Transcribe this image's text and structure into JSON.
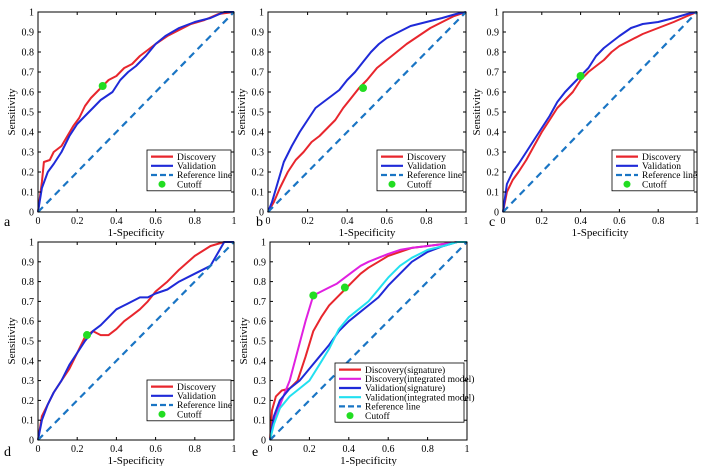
{
  "chart_data": [
    {
      "type": "line",
      "panel_label": "a",
      "xlabel": "1-Specificity",
      "ylabel": "Sensitivity",
      "xlim": [
        0,
        1
      ],
      "ylim": [
        0,
        1
      ],
      "xticks": [
        "0",
        "0.2",
        "0.4",
        "0.6",
        "0.8",
        "1"
      ],
      "yticks": [
        "0",
        "0.1",
        "0.2",
        "0.3",
        "0.4",
        "0.5",
        "0.6",
        "0.7",
        "0.8",
        "0.9",
        "1"
      ],
      "legend_position": "bottom-right",
      "series": [
        {
          "name": "Discovery",
          "color": "#e8262d",
          "style": "solid",
          "x": [
            0,
            0.02,
            0.03,
            0.06,
            0.08,
            0.12,
            0.15,
            0.18,
            0.21,
            0.24,
            0.27,
            0.3,
            0.33,
            0.36,
            0.4,
            0.44,
            0.48,
            0.52,
            0.56,
            0.6,
            0.66,
            0.72,
            0.78,
            0.85,
            0.92,
            1
          ],
          "y": [
            0,
            0.15,
            0.25,
            0.26,
            0.3,
            0.33,
            0.38,
            0.43,
            0.47,
            0.53,
            0.57,
            0.6,
            0.63,
            0.66,
            0.68,
            0.72,
            0.74,
            0.78,
            0.81,
            0.84,
            0.88,
            0.91,
            0.94,
            0.96,
            0.99,
            1
          ]
        },
        {
          "name": "Validation",
          "color": "#1f2ad8",
          "style": "solid",
          "x": [
            0,
            0.02,
            0.05,
            0.08,
            0.12,
            0.16,
            0.2,
            0.24,
            0.28,
            0.32,
            0.35,
            0.38,
            0.42,
            0.46,
            0.5,
            0.55,
            0.6,
            0.65,
            0.72,
            0.8,
            0.88,
            0.95,
            1
          ],
          "y": [
            0,
            0.12,
            0.2,
            0.24,
            0.3,
            0.38,
            0.44,
            0.48,
            0.52,
            0.56,
            0.58,
            0.6,
            0.66,
            0.7,
            0.73,
            0.78,
            0.84,
            0.88,
            0.92,
            0.95,
            0.97,
            1,
            1
          ]
        },
        {
          "name": "Reference line",
          "color": "#1a75c4",
          "style": "dashed",
          "x": [
            0,
            1
          ],
          "y": [
            0,
            1
          ]
        }
      ],
      "cutoff": {
        "name": "Cutoff",
        "color": "#22dd22",
        "x": 0.33,
        "y": 0.63
      }
    },
    {
      "type": "line",
      "panel_label": "b",
      "xlabel": "1-Specificity",
      "ylabel": "Sensitivity",
      "xlim": [
        0,
        1
      ],
      "ylim": [
        0,
        1
      ],
      "xticks": [
        "0",
        "0.2",
        "0.4",
        "0.6",
        "0.8",
        "1"
      ],
      "yticks": [
        "0",
        "0.1",
        "0.2",
        "0.3",
        "0.4",
        "0.5",
        "0.6",
        "0.7",
        "0.8",
        "0.9",
        "1"
      ],
      "legend_position": "bottom-right",
      "series": [
        {
          "name": "Discovery",
          "color": "#e8262d",
          "style": "solid",
          "x": [
            0,
            0.03,
            0.06,
            0.1,
            0.14,
            0.18,
            0.22,
            0.26,
            0.3,
            0.34,
            0.38,
            0.42,
            0.46,
            0.5,
            0.55,
            0.6,
            0.65,
            0.7,
            0.76,
            0.82,
            0.88,
            0.94,
            1
          ],
          "y": [
            0,
            0.05,
            0.12,
            0.2,
            0.26,
            0.3,
            0.35,
            0.38,
            0.42,
            0.46,
            0.52,
            0.57,
            0.62,
            0.66,
            0.72,
            0.76,
            0.8,
            0.84,
            0.88,
            0.92,
            0.95,
            0.98,
            1
          ]
        },
        {
          "name": "Validation",
          "color": "#1f2ad8",
          "style": "solid",
          "x": [
            0,
            0.02,
            0.05,
            0.08,
            0.12,
            0.16,
            0.2,
            0.24,
            0.28,
            0.32,
            0.36,
            0.4,
            0.44,
            0.48,
            0.52,
            0.56,
            0.6,
            0.66,
            0.72,
            0.8,
            0.88,
            0.95,
            1
          ],
          "y": [
            0,
            0.05,
            0.15,
            0.25,
            0.33,
            0.4,
            0.46,
            0.52,
            0.55,
            0.58,
            0.61,
            0.66,
            0.7,
            0.75,
            0.8,
            0.84,
            0.87,
            0.9,
            0.93,
            0.95,
            0.97,
            0.99,
            1
          ]
        },
        {
          "name": "Reference line",
          "color": "#1a75c4",
          "style": "dashed",
          "x": [
            0,
            1
          ],
          "y": [
            0,
            1
          ]
        }
      ],
      "cutoff": {
        "name": "Cutoff",
        "color": "#22dd22",
        "x": 0.48,
        "y": 0.62
      }
    },
    {
      "type": "line",
      "panel_label": "c",
      "xlabel": "1-Specificity",
      "ylabel": "Sensitivity",
      "xlim": [
        0,
        1
      ],
      "ylim": [
        0,
        1
      ],
      "xticks": [
        "0",
        "0.2",
        "0.4",
        "0.6",
        "0.8",
        "1"
      ],
      "yticks": [
        "0",
        "0.1",
        "0.2",
        "0.3",
        "0.4",
        "0.5",
        "0.6",
        "0.7",
        "0.8",
        "0.9",
        "1"
      ],
      "legend_position": "bottom-right",
      "series": [
        {
          "name": "Discovery",
          "color": "#e8262d",
          "style": "solid",
          "x": [
            0,
            0.02,
            0.05,
            0.08,
            0.12,
            0.16,
            0.2,
            0.24,
            0.28,
            0.32,
            0.36,
            0.4,
            0.44,
            0.48,
            0.52,
            0.56,
            0.6,
            0.66,
            0.72,
            0.8,
            0.88,
            0.95,
            1
          ],
          "y": [
            0,
            0.1,
            0.16,
            0.2,
            0.26,
            0.33,
            0.4,
            0.46,
            0.52,
            0.56,
            0.6,
            0.66,
            0.7,
            0.73,
            0.76,
            0.8,
            0.83,
            0.86,
            0.89,
            0.92,
            0.95,
            0.98,
            1
          ]
        },
        {
          "name": "Validation",
          "color": "#1f2ad8",
          "style": "solid",
          "x": [
            0,
            0.02,
            0.05,
            0.08,
            0.12,
            0.16,
            0.2,
            0.24,
            0.28,
            0.32,
            0.36,
            0.4,
            0.44,
            0.48,
            0.52,
            0.56,
            0.6,
            0.66,
            0.72,
            0.8,
            0.88,
            0.95,
            1
          ],
          "y": [
            0,
            0.14,
            0.2,
            0.24,
            0.3,
            0.36,
            0.42,
            0.48,
            0.55,
            0.6,
            0.64,
            0.68,
            0.72,
            0.78,
            0.82,
            0.85,
            0.88,
            0.92,
            0.94,
            0.95,
            0.97,
            0.99,
            1
          ]
        },
        {
          "name": "Reference line",
          "color": "#1a75c4",
          "style": "dashed",
          "x": [
            0,
            1
          ],
          "y": [
            0,
            1
          ]
        }
      ],
      "cutoff": {
        "name": "Cutoff",
        "color": "#22dd22",
        "x": 0.4,
        "y": 0.68
      }
    },
    {
      "type": "line",
      "panel_label": "d",
      "xlabel": "1-Specificity",
      "ylabel": "Sensitivity",
      "xlim": [
        0,
        1
      ],
      "ylim": [
        0,
        1
      ],
      "xticks": [
        "0",
        "0.2",
        "0.4",
        "0.6",
        "0.8",
        "1"
      ],
      "yticks": [
        "0",
        "0.1",
        "0.2",
        "0.3",
        "0.4",
        "0.5",
        "0.6",
        "0.7",
        "0.8",
        "0.9",
        "1"
      ],
      "legend_position": "bottom-right",
      "series": [
        {
          "name": "Discovery",
          "color": "#e8262d",
          "style": "solid",
          "x": [
            0,
            0.02,
            0.05,
            0.08,
            0.12,
            0.16,
            0.2,
            0.24,
            0.28,
            0.32,
            0.36,
            0.4,
            0.44,
            0.48,
            0.52,
            0.56,
            0.6,
            0.66,
            0.72,
            0.8,
            0.88,
            0.95,
            1
          ],
          "y": [
            0,
            0.12,
            0.18,
            0.24,
            0.3,
            0.36,
            0.44,
            0.52,
            0.55,
            0.53,
            0.53,
            0.56,
            0.6,
            0.63,
            0.66,
            0.7,
            0.75,
            0.8,
            0.86,
            0.93,
            0.98,
            1,
            1
          ]
        },
        {
          "name": "Validation",
          "color": "#1f2ad8",
          "style": "solid",
          "x": [
            0,
            0.02,
            0.05,
            0.08,
            0.12,
            0.16,
            0.2,
            0.24,
            0.28,
            0.32,
            0.36,
            0.4,
            0.44,
            0.48,
            0.52,
            0.56,
            0.6,
            0.66,
            0.72,
            0.8,
            0.88,
            0.95,
            1
          ],
          "y": [
            0,
            0.1,
            0.18,
            0.24,
            0.3,
            0.38,
            0.44,
            0.5,
            0.55,
            0.58,
            0.62,
            0.66,
            0.68,
            0.7,
            0.72,
            0.72,
            0.74,
            0.76,
            0.8,
            0.84,
            0.88,
            1,
            1
          ]
        },
        {
          "name": "Reference line",
          "color": "#1a75c4",
          "style": "dashed",
          "x": [
            0,
            1
          ],
          "y": [
            0,
            1
          ]
        }
      ],
      "cutoff": {
        "name": "Cutoff",
        "color": "#22dd22",
        "x": 0.25,
        "y": 0.53
      }
    },
    {
      "type": "line",
      "panel_label": "e",
      "xlabel": "1-Specificity",
      "ylabel": "Sensitivity",
      "xlim": [
        0,
        1
      ],
      "ylim": [
        0,
        1
      ],
      "xticks": [
        "0",
        "0.2",
        "0.4",
        "0.6",
        "0.8",
        "1"
      ],
      "yticks": [
        "0",
        "0.1",
        "0.2",
        "0.3",
        "0.4",
        "0.5",
        "0.6",
        "0.7",
        "0.8",
        "0.9",
        "1"
      ],
      "legend_position": "bottom-right",
      "series": [
        {
          "name": "Discovery(signature)",
          "color": "#e8262d",
          "style": "solid",
          "x": [
            0,
            0.01,
            0.03,
            0.06,
            0.1,
            0.14,
            0.18,
            0.22,
            0.26,
            0.3,
            0.34,
            0.38,
            0.42,
            0.46,
            0.5,
            0.55,
            0.6,
            0.66,
            0.72,
            0.8,
            0.88,
            0.95,
            1
          ],
          "y": [
            0,
            0.15,
            0.22,
            0.25,
            0.26,
            0.3,
            0.42,
            0.55,
            0.62,
            0.68,
            0.72,
            0.76,
            0.8,
            0.84,
            0.87,
            0.9,
            0.93,
            0.95,
            0.97,
            0.98,
            0.99,
            1,
            1
          ]
        },
        {
          "name": "Discovery(integrated model)",
          "color": "#e020e0",
          "style": "solid",
          "x": [
            0,
            0.01,
            0.03,
            0.06,
            0.1,
            0.14,
            0.18,
            0.22,
            0.26,
            0.3,
            0.34,
            0.38,
            0.42,
            0.46,
            0.5,
            0.55,
            0.6,
            0.66,
            0.72,
            0.8,
            0.88,
            0.95,
            1
          ],
          "y": [
            0,
            0.06,
            0.12,
            0.2,
            0.3,
            0.45,
            0.6,
            0.73,
            0.75,
            0.77,
            0.79,
            0.82,
            0.85,
            0.88,
            0.9,
            0.92,
            0.94,
            0.96,
            0.97,
            0.98,
            0.99,
            1,
            1
          ]
        },
        {
          "name": "Validation(signature)",
          "color": "#1f2ad8",
          "style": "solid",
          "x": [
            0,
            0.02,
            0.05,
            0.1,
            0.15,
            0.2,
            0.25,
            0.3,
            0.35,
            0.4,
            0.45,
            0.5,
            0.55,
            0.6,
            0.66,
            0.72,
            0.8,
            0.88,
            0.95,
            1
          ],
          "y": [
            0,
            0.12,
            0.2,
            0.26,
            0.3,
            0.36,
            0.42,
            0.48,
            0.55,
            0.6,
            0.64,
            0.68,
            0.72,
            0.78,
            0.84,
            0.9,
            0.95,
            0.98,
            1,
            1
          ]
        },
        {
          "name": "Validation(integrated model)",
          "color": "#22e0f0",
          "style": "solid",
          "x": [
            0,
            0.02,
            0.05,
            0.1,
            0.15,
            0.2,
            0.25,
            0.3,
            0.35,
            0.4,
            0.45,
            0.5,
            0.55,
            0.6,
            0.66,
            0.72,
            0.8,
            0.88,
            0.95,
            1
          ],
          "y": [
            0,
            0.08,
            0.16,
            0.22,
            0.26,
            0.3,
            0.38,
            0.46,
            0.56,
            0.62,
            0.66,
            0.7,
            0.76,
            0.82,
            0.88,
            0.92,
            0.96,
            0.98,
            1,
            1
          ]
        },
        {
          "name": "Reference line",
          "color": "#1a75c4",
          "style": "dashed",
          "x": [
            0,
            1
          ],
          "y": [
            0,
            1
          ]
        }
      ],
      "cutoffs": [
        {
          "name": "Cutoff",
          "color": "#22dd22",
          "x": 0.22,
          "y": 0.73
        },
        {
          "name": "Cutoff",
          "color": "#22dd22",
          "x": 0.38,
          "y": 0.77
        }
      ]
    }
  ]
}
